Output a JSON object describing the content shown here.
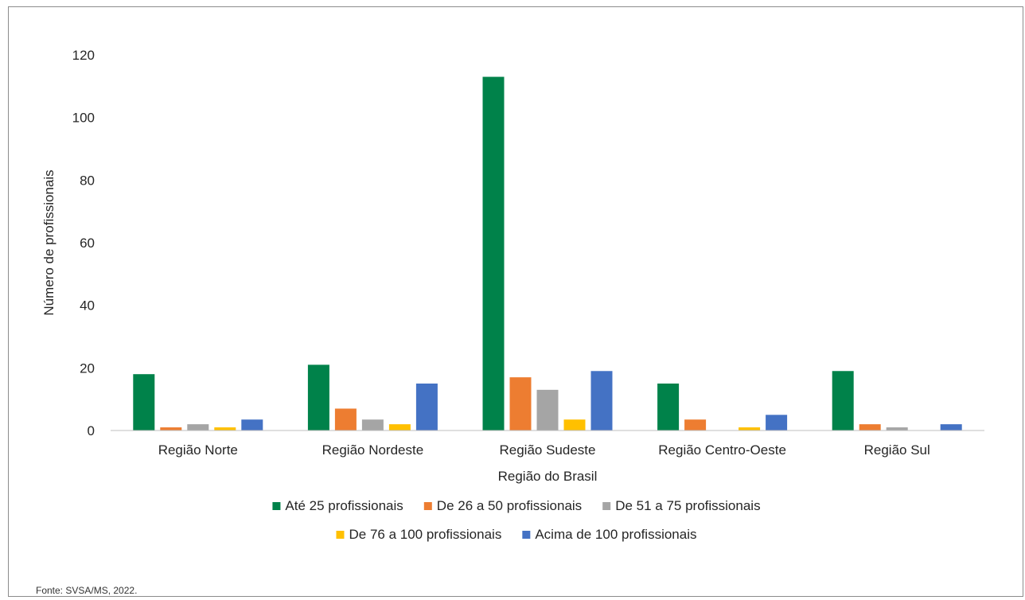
{
  "chart_data": {
    "type": "bar",
    "title": "",
    "xlabel": "Região do Brasil",
    "ylabel": "Número de profissionais",
    "ylim": [
      0,
      120
    ],
    "yticks": [
      0,
      20,
      40,
      60,
      80,
      100,
      120
    ],
    "grid": false,
    "legend_position": "bottom",
    "categories": [
      "Região Norte",
      "Região Nordeste",
      "Região Sudeste",
      "Região Centro-Oeste",
      "Região Sul"
    ],
    "series": [
      {
        "name": "Até 25 profissionais",
        "color": "#00824a",
        "values": [
          18,
          21,
          113,
          15,
          19
        ]
      },
      {
        "name": "De 26 a 50 profissionais",
        "color": "#ed7d31",
        "values": [
          1,
          7,
          17,
          3.5,
          2
        ]
      },
      {
        "name": "De 51 a 75 profissionais",
        "color": "#a5a5a5",
        "values": [
          2,
          3.5,
          13,
          0,
          1
        ]
      },
      {
        "name": "De 76 a 100 profissionais",
        "color": "#ffc000",
        "values": [
          1,
          2,
          3.5,
          1,
          0
        ]
      },
      {
        "name": "Acima de 100 profissionais",
        "color": "#4472c4",
        "values": [
          3.5,
          15,
          19,
          5,
          2
        ]
      }
    ]
  },
  "source_note": "Fonte: SVSA/MS, 2022."
}
